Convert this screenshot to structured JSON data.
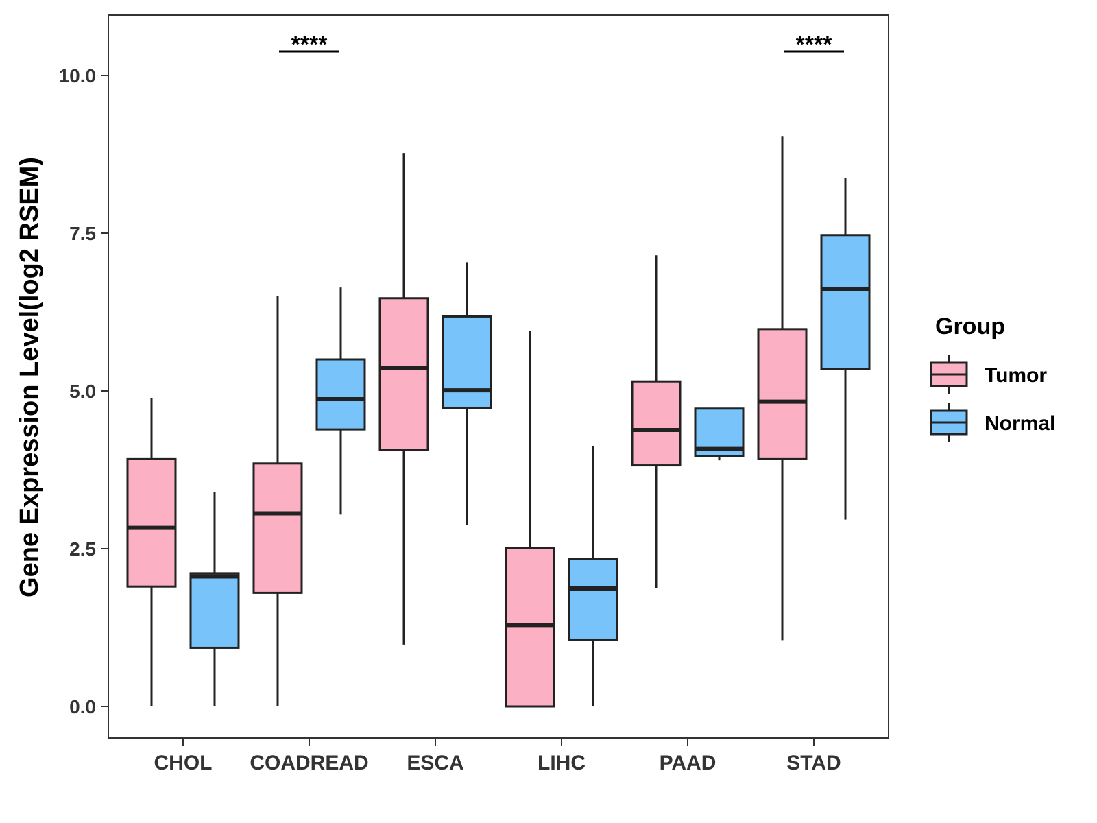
{
  "chart_data": {
    "type": "boxplot",
    "title": "",
    "xlabel": "",
    "ylabel": "Gene Expression Level(log2 RSEM)",
    "ylim": [
      -0.5,
      10.96
    ],
    "yticks": [
      "0.0",
      "2.5",
      "5.0",
      "7.5",
      "10.0"
    ],
    "ytick_values": [
      0,
      2.5,
      5,
      7.5,
      10
    ],
    "grid": false,
    "legend_title": "Group",
    "legend_position": "right",
    "categories": [
      "CHOL",
      "COADREAD",
      "ESCA",
      "LIHC",
      "PAAD",
      "STAD"
    ],
    "series": [
      {
        "name": "Tumor",
        "color": "#FBB0C3",
        "boxes": [
          {
            "min": 0.0,
            "q1": 1.9,
            "median": 2.83,
            "q3": 3.92,
            "max": 4.88
          },
          {
            "min": 0.0,
            "q1": 1.8,
            "median": 3.06,
            "q3": 3.85,
            "max": 6.5
          },
          {
            "min": 0.98,
            "q1": 4.07,
            "median": 5.36,
            "q3": 6.47,
            "max": 8.77
          },
          {
            "min": 0.0,
            "q1": 0.0,
            "median": 1.29,
            "q3": 2.51,
            "max": 5.95
          },
          {
            "min": 1.88,
            "q1": 3.82,
            "median": 4.38,
            "q3": 5.15,
            "max": 7.15
          },
          {
            "min": 1.05,
            "q1": 3.92,
            "median": 4.83,
            "q3": 5.98,
            "max": 9.03
          }
        ]
      },
      {
        "name": "Normal",
        "color": "#78C3F9",
        "boxes": [
          {
            "min": 0.0,
            "q1": 0.93,
            "median": 2.06,
            "q3": 2.11,
            "max": 3.4
          },
          {
            "min": 3.04,
            "q1": 4.39,
            "median": 4.87,
            "q3": 5.5,
            "max": 6.64
          },
          {
            "min": 2.88,
            "q1": 4.73,
            "median": 5.01,
            "q3": 6.18,
            "max": 7.04
          },
          {
            "min": 0.0,
            "q1": 1.06,
            "median": 1.87,
            "q3": 2.34,
            "max": 4.12
          },
          {
            "min": 3.9,
            "q1": 3.97,
            "median": 4.08,
            "q3": 4.72,
            "max": 4.72
          },
          {
            "min": 2.96,
            "q1": 5.35,
            "median": 6.62,
            "q3": 7.47,
            "max": 8.38
          }
        ]
      }
    ],
    "annotations": [
      {
        "category": "COADREAD",
        "label": "****"
      },
      {
        "category": "STAD",
        "label": "****"
      }
    ]
  }
}
